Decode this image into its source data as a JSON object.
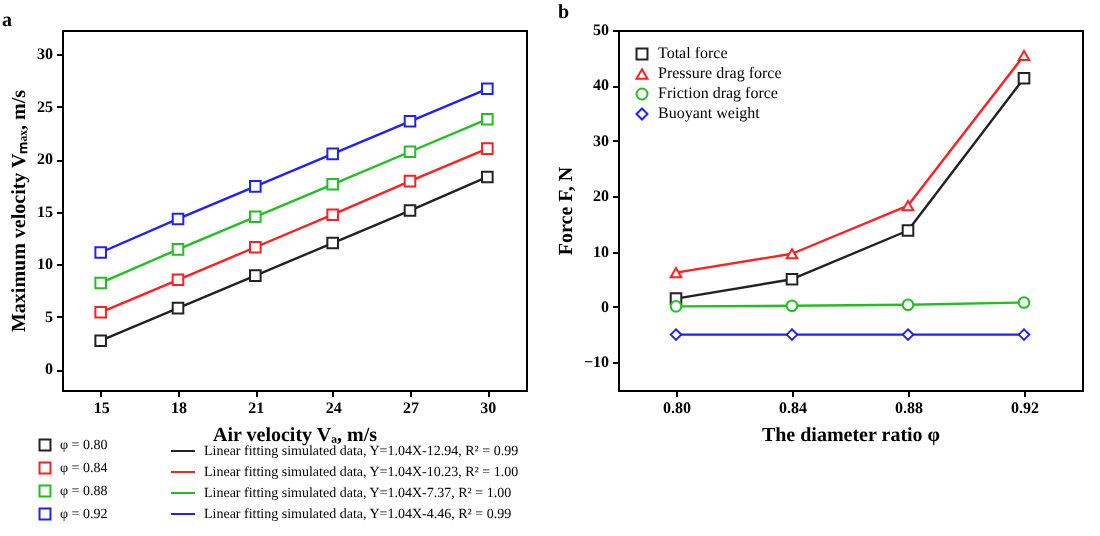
{
  "chart_data": [
    {
      "type": "scatter",
      "title": "a",
      "xlabel": "Air velocity Vₐ, m/s",
      "ylabel": "Maximum velocity Vₘₐₓ, m/s",
      "x": [
        15,
        18,
        21,
        24,
        27,
        30
      ],
      "xlim": [
        13.5,
        31.5
      ],
      "xticks": [
        15,
        18,
        21,
        24,
        27,
        30
      ],
      "ylim": [
        -2,
        32.3
      ],
      "yticks": [
        0,
        5,
        10,
        15,
        20,
        25,
        30
      ],
      "grid": false,
      "legend": "bottom",
      "series": [
        {
          "name": "φ = 0.80",
          "color": "#222222",
          "marker": "square",
          "values": [
            2.7,
            5.8,
            8.9,
            12.0,
            15.1,
            18.3
          ]
        },
        {
          "name": "φ = 0.84",
          "color": "#ff2020",
          "marker": "square",
          "values": [
            5.4,
            8.5,
            11.6,
            14.7,
            17.9,
            21.0
          ]
        },
        {
          "name": "φ = 0.88",
          "color": "#20c020",
          "marker": "square",
          "values": [
            8.2,
            11.4,
            14.5,
            17.6,
            20.7,
            23.8
          ]
        },
        {
          "name": "φ = 0.92",
          "color": "#2020ff",
          "marker": "square",
          "values": [
            11.1,
            14.3,
            17.4,
            20.5,
            23.6,
            26.7
          ]
        },
        {
          "name": "Linear fitting  simulated data, Y=1.04X-12.94, R² = 0.99",
          "type": "line",
          "marker": "none",
          "color": "#222222",
          "values": [
            2.7,
            5.8,
            8.9,
            12.0,
            15.1,
            18.3
          ]
        },
        {
          "name": "Linear fitting  simulated data, Y=1.04X-10.23, R² = 1.00",
          "type": "line",
          "marker": "none",
          "color": "#ff2020",
          "values": [
            5.4,
            8.5,
            11.6,
            14.7,
            17.9,
            21.0
          ]
        },
        {
          "name": "Linear fitting  simulated data, Y=1.04X-7.37,  R² = 1.00",
          "type": "line",
          "marker": "none",
          "color": "#20c020",
          "values": [
            8.2,
            11.4,
            14.5,
            17.6,
            20.7,
            23.8
          ]
        },
        {
          "name": "Linear fitting  simulated data, Y=1.04X-4.46,  R² = 0.99",
          "type": "line",
          "marker": "none",
          "color": "#2020ff",
          "values": [
            11.1,
            14.3,
            17.4,
            20.5,
            23.6,
            26.7
          ]
        }
      ]
    },
    {
      "type": "line",
      "title": "b",
      "xlabel": "The diameter ratio φ",
      "ylabel": "Force F, N",
      "x": [
        0.8,
        0.84,
        0.88,
        0.92
      ],
      "xlim": [
        0.78,
        0.94
      ],
      "xticks": [
        {
          "value": 0.8,
          "label": "0.80"
        },
        0.84,
        0.88,
        0.92
      ],
      "ylim": [
        -15,
        50
      ],
      "yticks": [
        -10,
        0,
        10,
        20,
        30,
        40,
        50
      ],
      "grid": false,
      "legend": "top left",
      "series": [
        {
          "name": "Total force",
          "color": "#222222",
          "marker": "square",
          "values": [
            1.5,
            5.0,
            13.8,
            41.3
          ]
        },
        {
          "name": "Pressure drag force",
          "color": "#ff2020",
          "marker": "triangle",
          "values": [
            6.2,
            9.6,
            18.3,
            45.4
          ]
        },
        {
          "name": "Friction drag force",
          "color": "#20c020",
          "marker": "circle",
          "values": [
            0.1,
            0.2,
            0.4,
            0.8
          ]
        },
        {
          "name": "Buoyant weight",
          "color": "#2020ff",
          "marker": "diamond",
          "values": [
            -5,
            -5,
            -5,
            -5
          ]
        }
      ]
    }
  ]
}
